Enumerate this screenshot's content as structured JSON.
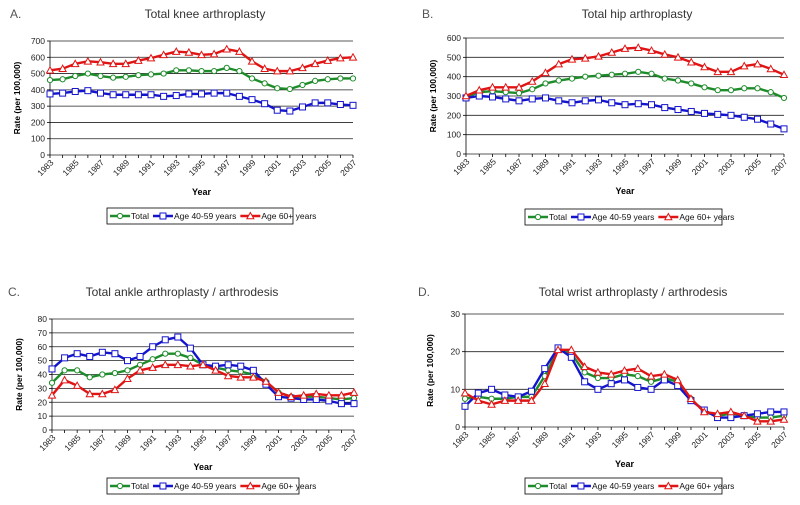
{
  "colors": {
    "Total": "#1e8c2a",
    "Age 40-59 years": "#1414cc",
    "Age 60+ years": "#e01414",
    "grid": "#222222"
  },
  "years": [
    "1983",
    "1984",
    "1985",
    "1986",
    "1987",
    "1988",
    "1989",
    "1990",
    "1991",
    "1992",
    "1993",
    "1994",
    "1995",
    "1996",
    "1997",
    "1998",
    "1999",
    "2000",
    "2001",
    "2002",
    "2003",
    "2004",
    "2005",
    "2006",
    "2007"
  ],
  "chart_data": [
    {
      "type": "line",
      "panel": "A.",
      "title": "Total knee arthroplasty",
      "xlabel": "Year",
      "ylabel": "Rate (per 100,000)",
      "ylim": [
        0,
        700
      ],
      "ytick_step": 100,
      "xtick_labels": [
        "1983",
        "1985",
        "1987",
        "1989",
        "1991",
        "1993",
        "1995",
        "1997",
        "1999",
        "2001",
        "2003",
        "2005",
        "2007"
      ],
      "legend": "bottom",
      "grid": true,
      "series": [
        {
          "name": "Total",
          "marker": "circle",
          "values": [
            460,
            465,
            485,
            500,
            485,
            475,
            480,
            490,
            495,
            500,
            520,
            520,
            515,
            515,
            535,
            515,
            470,
            440,
            410,
            405,
            430,
            455,
            465,
            470,
            470
          ]
        },
        {
          "name": "Age 40-59 years",
          "marker": "square",
          "values": [
            375,
            380,
            390,
            395,
            380,
            370,
            370,
            370,
            370,
            360,
            365,
            375,
            375,
            380,
            380,
            360,
            340,
            315,
            275,
            270,
            295,
            320,
            320,
            310,
            305
          ]
        },
        {
          "name": "Age 60+ years",
          "marker": "triangle",
          "values": [
            520,
            530,
            560,
            575,
            570,
            560,
            560,
            580,
            595,
            615,
            635,
            630,
            615,
            620,
            650,
            635,
            575,
            530,
            515,
            515,
            535,
            560,
            580,
            595,
            600
          ]
        }
      ]
    },
    {
      "type": "line",
      "panel": "B.",
      "title": "Total hip arthroplasty",
      "xlabel": "Year",
      "ylabel": "Rate (per 100,000)",
      "ylim": [
        0,
        600
      ],
      "ytick_step": 100,
      "xtick_labels": [
        "1983",
        "1985",
        "1987",
        "1989",
        "1991",
        "1993",
        "1995",
        "1997",
        "1999",
        "2001",
        "2003",
        "2005",
        "2007"
      ],
      "legend": "bottom",
      "grid": true,
      "series": [
        {
          "name": "Total",
          "marker": "circle",
          "values": [
            295,
            320,
            325,
            320,
            315,
            335,
            365,
            380,
            390,
            400,
            405,
            410,
            415,
            425,
            415,
            390,
            380,
            365,
            345,
            330,
            330,
            340,
            340,
            320,
            290
          ]
        },
        {
          "name": "Age 40-59 years",
          "marker": "square",
          "values": [
            290,
            300,
            295,
            285,
            275,
            285,
            290,
            275,
            265,
            275,
            280,
            265,
            255,
            260,
            255,
            240,
            230,
            220,
            210,
            205,
            200,
            190,
            180,
            155,
            130
          ]
        },
        {
          "name": "Age 60+ years",
          "marker": "triangle",
          "values": [
            300,
            330,
            345,
            345,
            345,
            375,
            420,
            465,
            490,
            495,
            505,
            525,
            545,
            550,
            535,
            515,
            500,
            475,
            450,
            425,
            425,
            455,
            465,
            440,
            410
          ]
        }
      ]
    },
    {
      "type": "line",
      "panel": "C.",
      "title": "Total ankle arthroplasty / arthrodesis",
      "xlabel": "Year",
      "ylabel": "Rate (per 100,000)",
      "ylim": [
        0,
        80
      ],
      "ytick_step": 10,
      "xtick_labels": [
        "1983",
        "1985",
        "1987",
        "1989",
        "1991",
        "1993",
        "1995",
        "1997",
        "1999",
        "2001",
        "2003",
        "2005",
        "2007"
      ],
      "legend": "bottom",
      "grid": true,
      "series": [
        {
          "name": "Total",
          "marker": "circle",
          "values": [
            34,
            43,
            43,
            38,
            40,
            41,
            43,
            47,
            51,
            55,
            55,
            52,
            47,
            45,
            43,
            42,
            40,
            35,
            27,
            24,
            24,
            24,
            23,
            22,
            23
          ]
        },
        {
          "name": "Age 40-59 years",
          "marker": "square",
          "values": [
            44,
            52,
            55,
            53,
            56,
            55,
            50,
            53,
            60,
            65,
            67,
            59,
            47,
            46,
            47,
            46,
            43,
            33,
            24,
            23,
            22,
            22,
            21,
            19,
            19
          ]
        },
        {
          "name": "Age 60+ years",
          "marker": "triangle",
          "values": [
            25,
            36,
            32,
            26,
            26,
            29,
            37,
            43,
            45,
            47,
            47,
            46,
            47,
            43,
            39,
            38,
            38,
            35,
            27,
            24,
            25,
            26,
            25,
            25,
            27
          ]
        }
      ]
    },
    {
      "type": "line",
      "panel": "D.",
      "title": "Total wrist arthroplasty / arthrodesis",
      "xlabel": "Year",
      "ylabel": "Rate (per 100,000)",
      "ylim": [
        0,
        30
      ],
      "ytick_step": 10,
      "xtick_labels": [
        "1983",
        "1985",
        "1987",
        "1989",
        "1991",
        "1993",
        "1995",
        "1997",
        "1999",
        "2001",
        "2003",
        "2005",
        "2007"
      ],
      "legend": "bottom",
      "grid": true,
      "series": [
        {
          "name": "Total",
          "marker": "circle",
          "values": [
            7.5,
            8,
            7.5,
            7.5,
            8,
            8,
            13.5,
            20.5,
            19.5,
            14.5,
            13,
            13,
            14,
            13.5,
            12,
            13,
            12,
            7.5,
            4,
            3,
            3.5,
            3,
            2.5,
            2.5,
            3
          ]
        },
        {
          "name": "Age 40-59 years",
          "marker": "square",
          "values": [
            5.5,
            9,
            10,
            8.5,
            8,
            9.5,
            15.5,
            21,
            18.5,
            12,
            10,
            11.5,
            12.5,
            10.5,
            10,
            12.5,
            11,
            7,
            4.5,
            2.5,
            2.5,
            3,
            3.5,
            4,
            4
          ]
        },
        {
          "name": "Age 60+ years",
          "marker": "triangle",
          "values": [
            9,
            7,
            6,
            7,
            7,
            7,
            11.5,
            20.5,
            20.5,
            16,
            14.5,
            14,
            15,
            15.5,
            13.5,
            14,
            12.5,
            7.5,
            4,
            3.5,
            4,
            3,
            1.5,
            1.5,
            2
          ]
        }
      ]
    }
  ]
}
